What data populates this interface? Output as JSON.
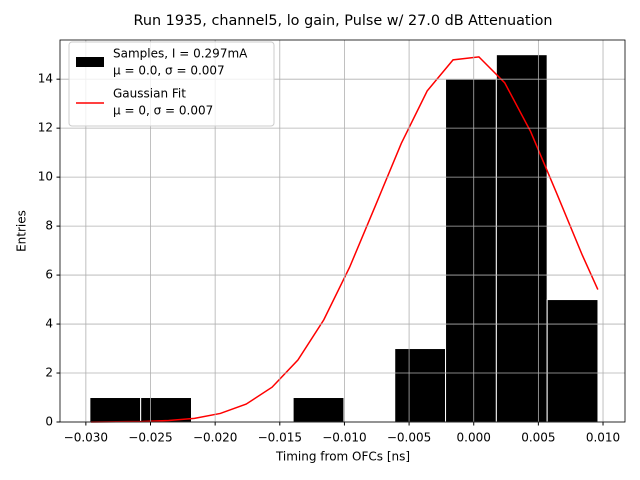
{
  "chart_data": {
    "type": "histogram",
    "title": "Run 1935, channel5, lo gain, Pulse w/ 27.0 dB Attenuation",
    "xlabel": "Timing from OFCs [ns]",
    "ylabel": "Entries",
    "bins": [
      -0.02969,
      -0.02576,
      -0.02183,
      -0.0179,
      -0.01397,
      -0.01004,
      -0.00611,
      -0.00218,
      0.00175,
      0.00568,
      0.00961
    ],
    "series": [
      {
        "name": [
          "Samples, I = 0.297mA",
          "μ = 0.0, σ = 0.007"
        ],
        "color": "#000000",
        "edgecolor": "#ffffff",
        "values": [
          1,
          1,
          0,
          0,
          1,
          0,
          3,
          14,
          15,
          5
        ]
      },
      {
        "name": [
          "Gaussian Fit",
          "μ = 0, σ = 0.007"
        ],
        "color": "#ff0000",
        "type": "line",
        "x": [
          -0.0296,
          -0.0276,
          -0.0256,
          -0.0236,
          -0.0216,
          -0.0196,
          -0.0176,
          -0.0156,
          -0.0136,
          -0.0116,
          -0.0096,
          -0.0076,
          -0.0056,
          -0.0036,
          -0.0016,
          0.0004,
          0.0024,
          0.0044,
          0.0064,
          0.0084,
          0.0096
        ],
        "values": [
          0.0,
          0.01,
          0.02,
          0.06,
          0.15,
          0.35,
          0.73,
          1.42,
          2.53,
          4.17,
          6.32,
          8.84,
          11.38,
          13.52,
          14.79,
          14.91,
          13.85,
          11.86,
          9.36,
          6.81,
          5.41
        ]
      }
    ],
    "xlim": [
      -0.032,
      0.0117
    ],
    "ylim": [
      0,
      15.6
    ],
    "xticks": [
      {
        "value": -0.03,
        "label": "−0.030"
      },
      {
        "value": -0.025,
        "label": "−0.025"
      },
      {
        "value": -0.02,
        "label": "−0.020"
      },
      {
        "value": -0.015,
        "label": "−0.015"
      },
      {
        "value": -0.01,
        "label": "−0.010"
      },
      {
        "value": -0.005,
        "label": "−0.005"
      },
      {
        "value": 0,
        "label": "0.000"
      },
      {
        "value": 0.005,
        "label": "0.005"
      },
      {
        "value": 0.01,
        "label": "0.010"
      }
    ],
    "yticks": [
      0,
      2,
      4,
      6,
      8,
      10,
      12,
      14
    ],
    "grid": true,
    "legend": "upper left"
  }
}
